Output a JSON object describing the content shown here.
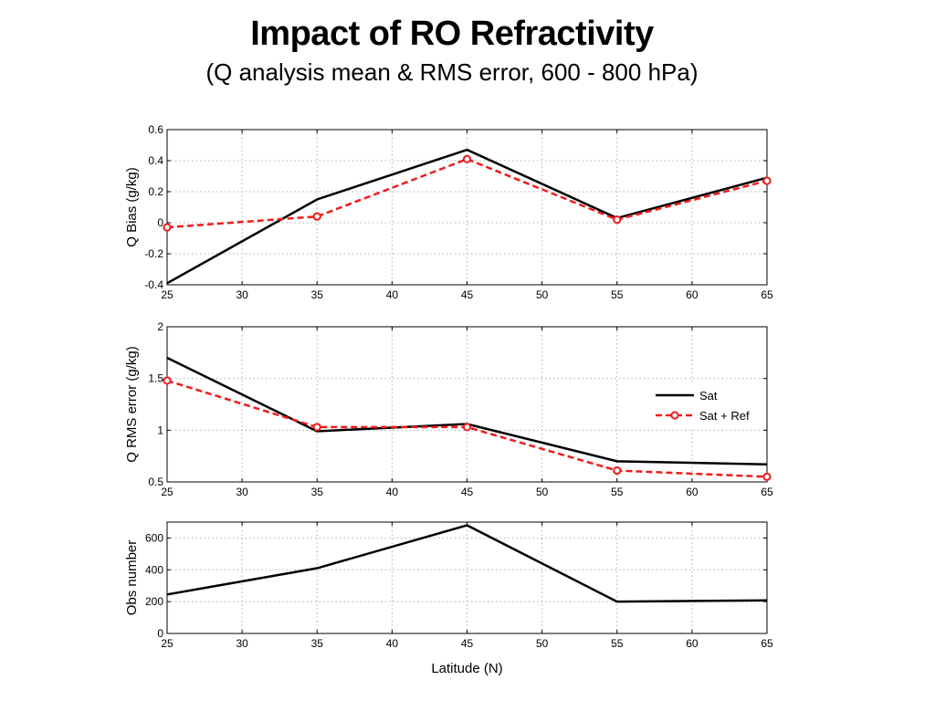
{
  "title": "Impact of RO Refractivity",
  "subtitle": "(Q analysis mean & RMS error, 600 - 800 hPa)",
  "colors": {
    "sat": "#000000",
    "sat_ref": "#ee1c1c",
    "grid": "#b0b0b0"
  },
  "chart_data": [
    {
      "type": "line",
      "ylabel": "Q Bias (g/kg)",
      "xlabel": "",
      "xlim": [
        25,
        65
      ],
      "ylim": [
        -0.4,
        0.6
      ],
      "xticks": [
        25,
        30,
        35,
        40,
        45,
        50,
        55,
        60,
        65
      ],
      "yticks": [
        -0.4,
        -0.2,
        0,
        0.2,
        0.4,
        0.6
      ],
      "ytick_labels": [
        "-0.4",
        "-0.2",
        "0",
        "0.2",
        "0.4",
        "0.6"
      ],
      "grid": true,
      "x": [
        25,
        35,
        45,
        55,
        65
      ],
      "series": [
        {
          "key": "sat",
          "values": [
            -0.39,
            0.15,
            0.47,
            0.03,
            0.29
          ]
        },
        {
          "key": "sat_ref",
          "values": [
            -0.03,
            0.04,
            0.41,
            0.02,
            0.27
          ]
        }
      ]
    },
    {
      "type": "line",
      "ylabel": "Q RMS error (g/kg)",
      "xlabel": "",
      "xlim": [
        25,
        65
      ],
      "ylim": [
        0.5,
        2
      ],
      "xticks": [
        25,
        30,
        35,
        40,
        45,
        50,
        55,
        60,
        65
      ],
      "yticks": [
        0.5,
        1,
        1.5,
        2
      ],
      "ytick_labels": [
        "0.5",
        "1",
        "1.5",
        "2"
      ],
      "grid": true,
      "legend": {
        "position": "right",
        "entries": [
          {
            "key": "sat",
            "label": "Sat"
          },
          {
            "key": "sat_ref",
            "label": "Sat + Ref"
          }
        ]
      },
      "x": [
        25,
        35,
        45,
        55,
        65
      ],
      "series": [
        {
          "key": "sat",
          "name": "Sat",
          "values": [
            1.7,
            0.99,
            1.06,
            0.7,
            0.67
          ]
        },
        {
          "key": "sat_ref",
          "name": "Sat + Ref",
          "values": [
            1.48,
            1.03,
            1.03,
            0.61,
            0.55
          ]
        }
      ]
    },
    {
      "type": "line",
      "ylabel": "Obs number",
      "xlabel": "Latitude (N)",
      "xlim": [
        25,
        65
      ],
      "ylim": [
        0,
        700
      ],
      "xticks": [
        25,
        30,
        35,
        40,
        45,
        50,
        55,
        60,
        65
      ],
      "yticks": [
        0,
        200,
        400,
        600
      ],
      "ytick_labels": [
        "0",
        "200",
        "400",
        "600"
      ],
      "grid": true,
      "x": [
        25,
        35,
        45,
        55,
        65
      ],
      "series": [
        {
          "key": "sat",
          "values": [
            245,
            410,
            680,
            200,
            208
          ]
        }
      ]
    }
  ]
}
